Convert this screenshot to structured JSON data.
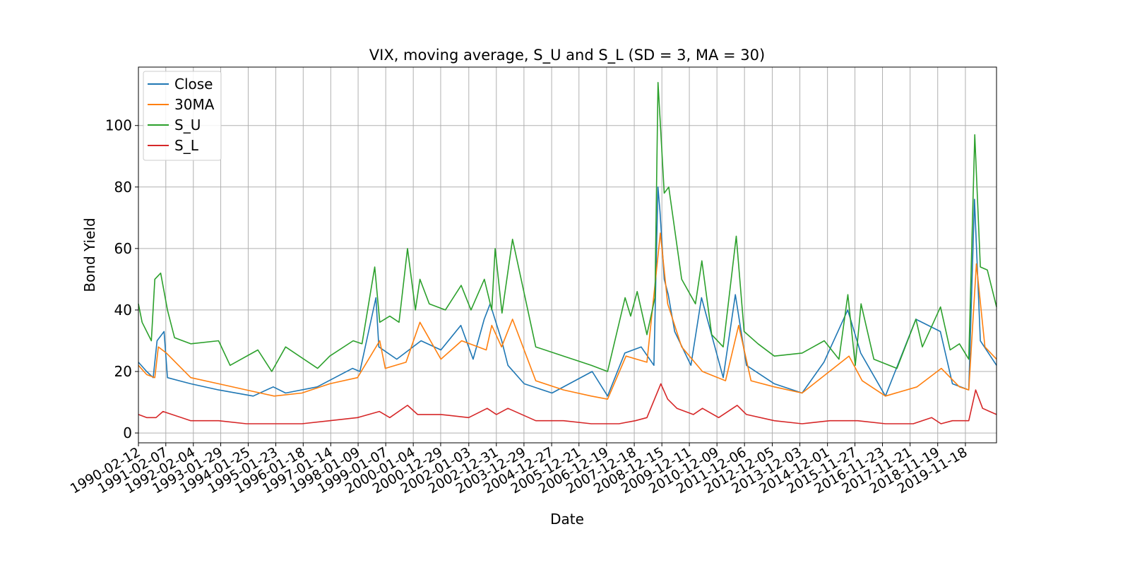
{
  "chart_data": {
    "type": "line",
    "title": "VIX, moving average, S_U and S_L (SD = 3, MA = 30)",
    "xlabel": "Date",
    "ylabel": "Bond Yield",
    "x_tick_labels": [
      "1990-02-12",
      "1991-02-07",
      "1992-02-04",
      "1993-01-29",
      "1994-01-25",
      "1995-01-23",
      "1996-01-18",
      "1997-01-14",
      "1998-01-09",
      "1999-01-07",
      "2000-01-04",
      "2000-12-29",
      "2002-01-03",
      "2002-12-31",
      "2003-12-29",
      "2004-12-27",
      "2005-12-21",
      "2006-12-19",
      "2007-12-18",
      "2008-12-15",
      "2009-12-11",
      "2010-12-09",
      "2011-12-06",
      "2012-12-05",
      "2013-12-03",
      "2014-12-01",
      "2015-11-27",
      "2016-11-23",
      "2017-11-21",
      "2018-11-19",
      "2019-11-18"
    ],
    "y_ticks": [
      0,
      20,
      40,
      60,
      80,
      100
    ],
    "xlim": [
      "1990-02-12",
      "2020-12-31"
    ],
    "ylim": [
      -3.2,
      119
    ],
    "grid": true,
    "legend_position": "top-left",
    "series": [
      {
        "name": "Close",
        "color": "#1f77b4",
        "x": [
          "1990-02-12",
          "1990-06-01",
          "1990-08-25",
          "1990-10-15",
          "1991-01-15",
          "1991-03-01",
          "1992-01-01",
          "1993-01-01",
          "1994-04-01",
          "1994-12-20",
          "1995-06-01",
          "1996-07-20",
          "1997-10-28",
          "1998-02-01",
          "1998-08-31",
          "1998-10-08",
          "1999-06-01",
          "2000-04-15",
          "2001-01-01",
          "2001-09-20",
          "2002-03-01",
          "2002-07-24",
          "2002-10-10",
          "2003-03-12",
          "2003-06-01",
          "2004-01-01",
          "2005-01-01",
          "2006-06-13",
          "2007-01-01",
          "2007-08-16",
          "2008-03-17",
          "2008-09-01",
          "2008-10-24",
          "2008-11-20",
          "2009-01-15",
          "2009-03-09",
          "2009-06-01",
          "2010-01-01",
          "2010-05-20",
          "2011-03-01",
          "2011-08-08",
          "2012-01-01",
          "2013-01-01",
          "2014-01-01",
          "2014-10-15",
          "2015-08-24",
          "2016-02-11",
          "2017-01-01",
          "2018-02-05",
          "2018-12-24",
          "2019-06-01",
          "2020-01-01",
          "2020-03-16",
          "2020-06-01",
          "2020-12-31"
        ],
        "values": [
          23,
          20,
          18,
          30,
          33,
          18,
          16,
          14,
          12,
          15,
          13,
          15,
          21,
          20,
          44,
          28,
          24,
          30,
          27,
          35,
          24,
          37,
          42,
          30,
          22,
          16,
          13,
          20,
          12,
          26,
          28,
          22,
          80,
          72,
          50,
          45,
          33,
          22,
          44,
          18,
          45,
          22,
          16,
          13,
          23,
          40,
          26,
          12,
          37,
          33,
          16,
          14,
          76,
          30,
          22
        ]
      },
      {
        "name": "30MA",
        "color": "#ff7f0e",
        "x": [
          "1990-02-12",
          "1990-06-01",
          "1990-09-15",
          "1990-11-01",
          "1991-02-15",
          "1992-01-01",
          "1993-01-01",
          "1994-01-01",
          "1995-01-01",
          "1996-01-01",
          "1997-01-01",
          "1998-01-01",
          "1998-10-20",
          "1999-01-01",
          "1999-10-01",
          "2000-04-01",
          "2001-01-01",
          "2001-10-01",
          "2002-08-20",
          "2002-11-01",
          "2003-03-10",
          "2003-08-01",
          "2004-06-01",
          "2005-06-01",
          "2006-06-01",
          "2007-01-01",
          "2007-09-01",
          "2008-06-01",
          "2008-11-25",
          "2009-03-01",
          "2009-09-01",
          "2010-06-01",
          "2011-04-01",
          "2011-09-20",
          "2012-03-01",
          "2013-01-01",
          "2014-01-01",
          "2015-09-10",
          "2016-03-01",
          "2017-01-01",
          "2018-02-20",
          "2019-01-05",
          "2019-09-01",
          "2020-01-01",
          "2020-04-10",
          "2020-08-01",
          "2020-12-31"
        ],
        "values": [
          22,
          19,
          18,
          28,
          26,
          18,
          16,
          14,
          12,
          13,
          16,
          18,
          30,
          21,
          23,
          36,
          24,
          30,
          27,
          35,
          28,
          37,
          17,
          14,
          12,
          11,
          25,
          23,
          65,
          42,
          28,
          20,
          17,
          35,
          17,
          15,
          13,
          25,
          17,
          12,
          15,
          21,
          15,
          14,
          55,
          28,
          24
        ]
      },
      {
        "name": "S_U",
        "color": "#2ca02c",
        "x": [
          "1990-02-12",
          "1990-04-01",
          "1990-08-01",
          "1990-09-15",
          "1990-12-01",
          "1991-03-01",
          "1991-06-01",
          "1992-01-01",
          "1993-01-01",
          "1993-06-01",
          "1994-06-01",
          "1994-12-01",
          "1995-06-01",
          "1996-07-25",
          "1997-01-01",
          "1997-11-05",
          "1998-03-01",
          "1998-08-15",
          "1998-10-20",
          "1999-03-01",
          "1999-07-01",
          "1999-10-20",
          "2000-02-01",
          "2000-04-01",
          "2000-08-01",
          "2001-03-01",
          "2001-09-25",
          "2002-02-01",
          "2002-07-26",
          "2002-11-01",
          "2002-12-15",
          "2003-03-15",
          "2003-08-01",
          "2004-06-01",
          "2005-06-01",
          "2006-06-01",
          "2007-01-01",
          "2007-08-20",
          "2007-11-01",
          "2008-01-25",
          "2008-06-01",
          "2008-09-15",
          "2008-10-25",
          "2009-01-15",
          "2009-03-15",
          "2009-09-01",
          "2010-03-01",
          "2010-05-25",
          "2010-10-01",
          "2011-03-01",
          "2011-08-20",
          "2011-12-01",
          "2012-06-01",
          "2013-01-01",
          "2014-01-01",
          "2014-10-20",
          "2015-05-01",
          "2015-08-26",
          "2015-12-01",
          "2016-02-15",
          "2016-08-01",
          "2017-06-01",
          "2018-02-06",
          "2018-05-01",
          "2018-12-26",
          "2019-05-01",
          "2019-09-01",
          "2020-01-01",
          "2020-03-20",
          "2020-06-01",
          "2020-09-01",
          "2020-12-31"
        ],
        "values": [
          42,
          36,
          30,
          50,
          52,
          40,
          31,
          29,
          30,
          22,
          27,
          20,
          28,
          21,
          25,
          30,
          29,
          54,
          36,
          38,
          36,
          60,
          40,
          50,
          42,
          40,
          48,
          40,
          50,
          40,
          60,
          39,
          63,
          28,
          25,
          22,
          20,
          44,
          38,
          46,
          32,
          44,
          114,
          78,
          80,
          50,
          42,
          56,
          32,
          28,
          64,
          33,
          29,
          25,
          26,
          30,
          24,
          45,
          22,
          42,
          24,
          21,
          37,
          28,
          41,
          27,
          29,
          24,
          97,
          54,
          53,
          41
        ]
      },
      {
        "name": "S_L",
        "color": "#d62728",
        "x": [
          "1990-02-12",
          "1990-06-01",
          "1990-10-01",
          "1991-01-01",
          "1992-01-01",
          "1993-01-01",
          "1994-01-01",
          "1995-01-01",
          "1996-01-01",
          "1997-01-01",
          "1998-01-01",
          "1998-10-15",
          "1999-03-01",
          "1999-10-20",
          "2000-03-01",
          "2001-01-01",
          "2002-01-01",
          "2002-09-01",
          "2003-01-01",
          "2003-06-01",
          "2004-06-01",
          "2005-06-01",
          "2006-06-01",
          "2007-06-01",
          "2008-01-01",
          "2008-06-01",
          "2008-12-01",
          "2009-03-01",
          "2009-07-01",
          "2010-02-01",
          "2010-06-01",
          "2011-01-01",
          "2011-09-01",
          "2012-01-01",
          "2013-01-01",
          "2014-01-01",
          "2015-01-01",
          "2016-01-01",
          "2017-01-01",
          "2018-01-01",
          "2018-09-01",
          "2019-01-01",
          "2019-06-01",
          "2020-01-01",
          "2020-04-01",
          "2020-07-01",
          "2020-12-31"
        ],
        "values": [
          6,
          5,
          5,
          7,
          4,
          4,
          3,
          3,
          3,
          4,
          5,
          7,
          5,
          9,
          6,
          6,
          5,
          8,
          6,
          8,
          4,
          4,
          3,
          3,
          4,
          5,
          16,
          11,
          8,
          6,
          8,
          5,
          9,
          6,
          4,
          3,
          4,
          4,
          3,
          3,
          5,
          3,
          4,
          4,
          14,
          8,
          6
        ]
      }
    ]
  }
}
